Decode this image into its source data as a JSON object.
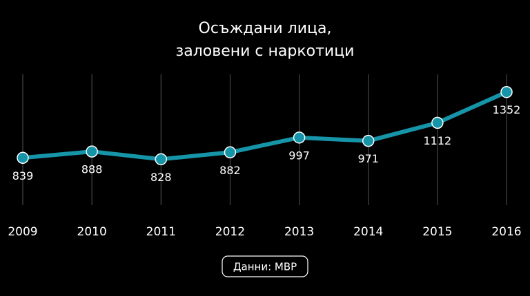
{
  "chart_data": {
    "type": "line",
    "title": [
      "Осъждани лица,",
      "заловени с наркотици"
    ],
    "categories": [
      "2009",
      "2010",
      "2011",
      "2012",
      "2013",
      "2014",
      "2015",
      "2016"
    ],
    "values": [
      839,
      888,
      828,
      882,
      997,
      971,
      1112,
      1352
    ],
    "color": "#1694a8",
    "ylim": [
      470,
      1490
    ],
    "grid": true,
    "source": "Данни: МВР"
  }
}
